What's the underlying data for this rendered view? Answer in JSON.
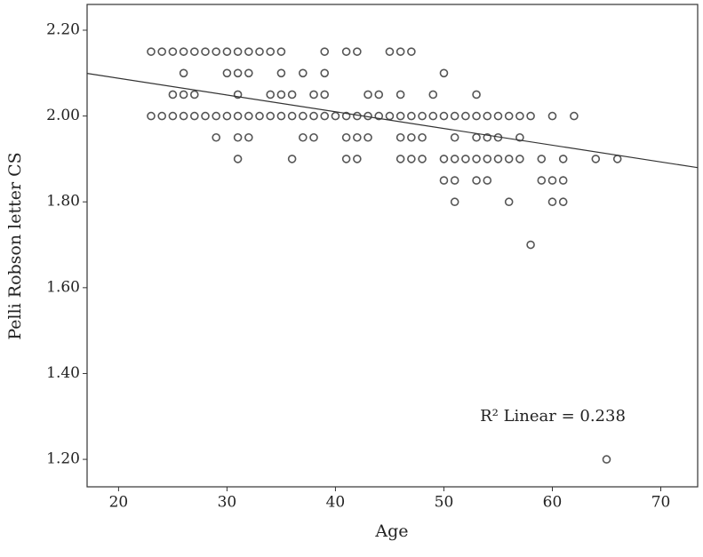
{
  "chart_data": {
    "type": "scatter",
    "xlabel": "Age",
    "ylabel": "Pelli Robson letter CS",
    "annotation": "R² Linear = 0.238",
    "x": [
      23,
      24,
      25,
      26,
      27,
      28,
      29,
      30,
      31,
      32,
      33,
      34,
      35,
      39,
      41,
      42,
      45,
      46,
      47,
      26,
      30,
      31,
      32,
      35,
      37,
      39,
      50,
      25,
      26,
      27,
      31,
      34,
      35,
      36,
      38,
      39,
      43,
      44,
      46,
      49,
      53,
      23,
      24,
      25,
      26,
      27,
      28,
      29,
      30,
      31,
      32,
      33,
      34,
      35,
      36,
      37,
      38,
      39,
      40,
      41,
      42,
      43,
      44,
      45,
      46,
      47,
      48,
      49,
      50,
      51,
      52,
      53,
      54,
      55,
      56,
      57,
      58,
      60,
      62,
      29,
      31,
      32,
      37,
      38,
      41,
      42,
      43,
      46,
      47,
      48,
      51,
      53,
      54,
      55,
      57,
      31,
      36,
      41,
      42,
      46,
      47,
      48,
      50,
      51,
      52,
      53,
      54,
      55,
      56,
      57,
      59,
      61,
      64,
      66,
      50,
      51,
      53,
      54,
      59,
      60,
      61,
      51,
      56,
      60,
      61,
      58,
      65
    ],
    "y": [
      2.15,
      2.15,
      2.15,
      2.15,
      2.15,
      2.15,
      2.15,
      2.15,
      2.15,
      2.15,
      2.15,
      2.15,
      2.15,
      2.15,
      2.15,
      2.15,
      2.15,
      2.15,
      2.15,
      2.1,
      2.1,
      2.1,
      2.1,
      2.1,
      2.1,
      2.1,
      2.1,
      2.05,
      2.05,
      2.05,
      2.05,
      2.05,
      2.05,
      2.05,
      2.05,
      2.05,
      2.05,
      2.05,
      2.05,
      2.05,
      2.05,
      2,
      2,
      2,
      2,
      2,
      2,
      2,
      2,
      2,
      2,
      2,
      2,
      2,
      2,
      2,
      2,
      2,
      2,
      2,
      2,
      2,
      2,
      2,
      2,
      2,
      2,
      2,
      2,
      2,
      2,
      2,
      2,
      2,
      2,
      2,
      2,
      2,
      2,
      1.95,
      1.95,
      1.95,
      1.95,
      1.95,
      1.95,
      1.95,
      1.95,
      1.95,
      1.95,
      1.95,
      1.95,
      1.95,
      1.95,
      1.95,
      1.95,
      1.9,
      1.9,
      1.9,
      1.9,
      1.9,
      1.9,
      1.9,
      1.9,
      1.9,
      1.9,
      1.9,
      1.9,
      1.9,
      1.9,
      1.9,
      1.9,
      1.9,
      1.9,
      1.9,
      1.85,
      1.85,
      1.85,
      1.85,
      1.85,
      1.85,
      1.85,
      1.8,
      1.8,
      1.8,
      1.8,
      1.7,
      1.2
    ],
    "fit": {
      "intercept": 2.166,
      "slope": -0.0039
    },
    "color": "#555555",
    "xlim": [
      17.1,
      73.4
    ],
    "xticks": [
      20,
      30,
      40,
      50,
      60,
      70
    ],
    "ylim": [
      1.136,
      2.26
    ],
    "yticks": [
      {
        "value": 1.2,
        "label": "1.20"
      },
      {
        "value": 1.4,
        "label": "1.40"
      },
      {
        "value": 1.6,
        "label": "1.60"
      },
      {
        "value": 1.8,
        "label": "1.80"
      },
      {
        "value": 2.0,
        "label": "2.00"
      },
      {
        "value": 2.2,
        "label": "2.20"
      }
    ]
  }
}
